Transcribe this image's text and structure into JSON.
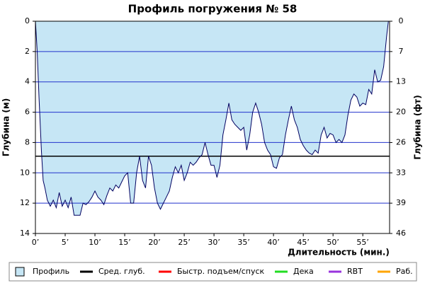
{
  "chart_data": {
    "type": "area",
    "title": "Профиль погружения № 58",
    "x_label": "Длительность (мин.)",
    "y_label": "Глубина (м)",
    "y2_label": "Глубина (фт)",
    "x": [
      0,
      0.3,
      0.6,
      1,
      1.3,
      1.6,
      2,
      2.5,
      3,
      3.5,
      4,
      4.5,
      5,
      5.5,
      6,
      6.5,
      7,
      7.5,
      8,
      8.5,
      9,
      9.5,
      10,
      10.5,
      11,
      11.5,
      12,
      12.5,
      13,
      13.5,
      14,
      14.5,
      15,
      15.5,
      16,
      16.5,
      17,
      17.5,
      18,
      18.5,
      19,
      19.5,
      20,
      20.5,
      21,
      21.5,
      22,
      22.5,
      23,
      23.5,
      24,
      24.5,
      25,
      25.5,
      26,
      26.5,
      27,
      27.5,
      28,
      28.5,
      29,
      29.5,
      30,
      30.5,
      31,
      31.5,
      32,
      32.5,
      33,
      33.5,
      34,
      34.5,
      35,
      35.5,
      36,
      36.5,
      37,
      37.5,
      38,
      38.5,
      39,
      39.5,
      40,
      40.5,
      41,
      41.5,
      42,
      42.5,
      43,
      43.5,
      44,
      44.5,
      45,
      45.5,
      46,
      46.5,
      47,
      47.5,
      48,
      48.5,
      49,
      49.5,
      50,
      50.5,
      51,
      51.5,
      52,
      52.5,
      53,
      53.5,
      54,
      54.5,
      55,
      55.5,
      56,
      56.5,
      57,
      57.5,
      58,
      58.5,
      59,
      59.3
    ],
    "series": [
      {
        "name": "Профиль",
        "color": "#c6e6f5",
        "line_color": "#000060",
        "values": [
          0,
          2,
          5,
          8.5,
          10.5,
          11,
          11.8,
          12.2,
          11.8,
          12.3,
          11.3,
          12.2,
          11.8,
          12.3,
          11.6,
          12.8,
          12.8,
          12.8,
          12,
          12.1,
          11.9,
          11.6,
          11.2,
          11.6,
          11.8,
          12.1,
          11.5,
          11,
          11.2,
          10.8,
          11,
          10.6,
          10.2,
          10,
          12,
          12,
          10,
          8.9,
          10.5,
          11,
          8.9,
          9.5,
          11,
          12,
          12.4,
          12,
          11.6,
          11.2,
          10.3,
          9.6,
          10,
          9.5,
          10.5,
          10,
          9.3,
          9.5,
          9.3,
          9,
          8.8,
          8,
          8.8,
          9.5,
          9.5,
          10.3,
          9.5,
          7.5,
          6.5,
          5.4,
          6.5,
          6.8,
          7,
          7.2,
          7,
          8.5,
          7.5,
          6,
          5.4,
          6,
          6.8,
          8,
          8.5,
          8.8,
          9.6,
          9.7,
          9,
          8.8,
          7.5,
          6.5,
          5.6,
          6.5,
          7,
          7.8,
          8.2,
          8.5,
          8.7,
          8.8,
          8.5,
          8.7,
          7.5,
          7,
          7.7,
          7.4,
          7.5,
          8,
          7.8,
          8,
          7.5,
          6.2,
          5.2,
          4.8,
          5,
          5.6,
          5.4,
          5.5,
          4.5,
          4.8,
          3.2,
          4,
          3.9,
          3,
          1,
          0
        ]
      }
    ],
    "avg_depth": {
      "name": "Сред. глуб.",
      "color": "#000000",
      "value": 8.9
    },
    "other_series": [
      {
        "name": "Быстр. подъем/спуск",
        "color": "#ff0000"
      },
      {
        "name": "Дека",
        "color": "#22dd22"
      },
      {
        "name": "RBT",
        "color": "#9933dd"
      },
      {
        "name": "Раб.",
        "color": "#ffa500"
      }
    ],
    "xlim": [
      0,
      59.5
    ],
    "xticks": [
      {
        "value": 0,
        "label": "0’"
      },
      {
        "value": 5,
        "label": "5’"
      },
      {
        "value": 10,
        "label": "10’"
      },
      {
        "value": 15,
        "label": "15’"
      },
      {
        "value": 20,
        "label": "20’"
      },
      {
        "value": 25,
        "label": "25’"
      },
      {
        "value": 30,
        "label": "30’"
      },
      {
        "value": 35,
        "label": "35’"
      },
      {
        "value": 40,
        "label": "40’"
      },
      {
        "value": 45,
        "label": "45’"
      },
      {
        "value": 50,
        "label": "50’"
      },
      {
        "value": 55,
        "label": "55’"
      }
    ],
    "ylim": [
      0,
      14
    ],
    "y_inverted": true,
    "yticks": [
      0,
      2,
      4,
      6,
      8,
      10,
      12,
      14
    ],
    "y2lim": [
      0,
      45.93
    ],
    "y2ticks": [
      {
        "value": 0,
        "label": "0"
      },
      {
        "value": 6.56,
        "label": "7"
      },
      {
        "value": 13.12,
        "label": "13"
      },
      {
        "value": 19.69,
        "label": "20"
      },
      {
        "value": 26.25,
        "label": "26"
      },
      {
        "value": 32.81,
        "label": "33"
      },
      {
        "value": 39.37,
        "label": "39"
      },
      {
        "value": 45.93,
        "label": "46"
      }
    ],
    "grid": true,
    "grid_color": "#2233cc"
  }
}
